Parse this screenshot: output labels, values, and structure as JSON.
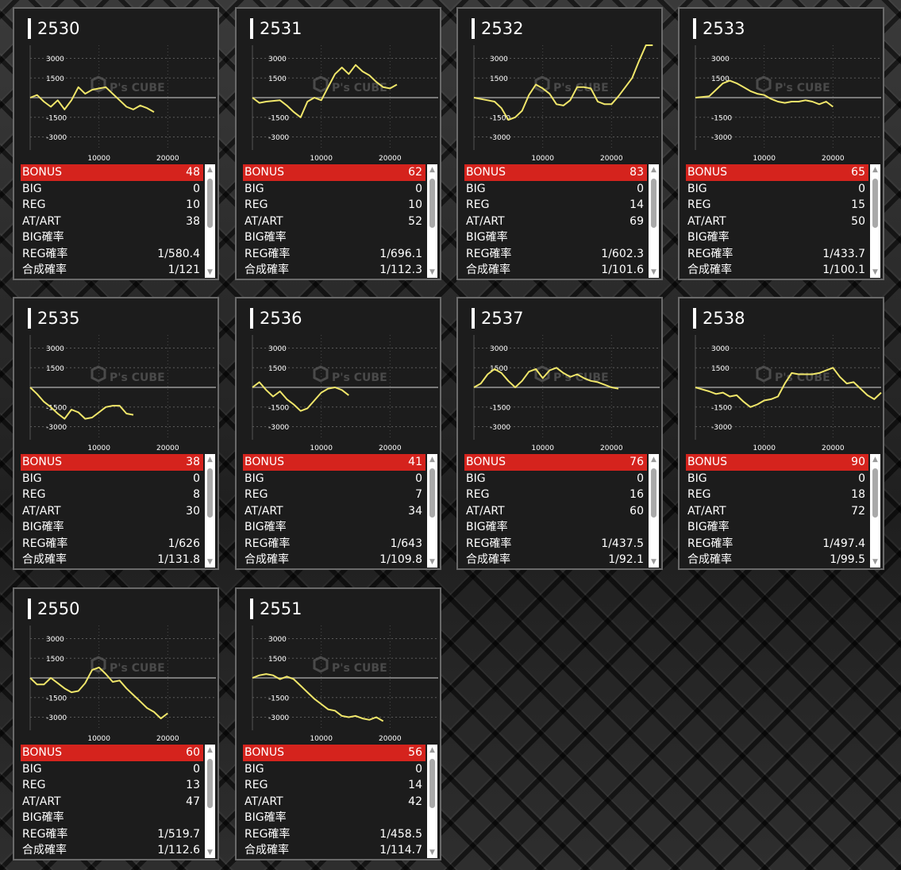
{
  "colors": {
    "line": "#f0e66a",
    "bonus_bg": "#d5231d",
    "card_bg": "#1c1c1c"
  },
  "chart_watermark": {
    "brand": "P's CUBE"
  },
  "machines": [
    {
      "id": "2530",
      "stats": {
        "bonus": "48",
        "big": "0",
        "reg": "10",
        "at_art": "38",
        "big_rate": "",
        "reg_rate": "1/580.4",
        "combined_rate": "1/121"
      },
      "chart_data": {
        "type": "line",
        "x_ticks": [
          "10000",
          "20000"
        ],
        "y_ticks": [
          "3000",
          "1500",
          "-1500",
          "-3000"
        ],
        "xlim": [
          0,
          27000
        ],
        "ylim": [
          -4000,
          4000
        ],
        "x": [
          0,
          1000,
          2000,
          3000,
          4000,
          5000,
          6000,
          7000,
          8000,
          9000,
          10000,
          11000,
          12000,
          13000,
          14000,
          15000,
          16000,
          17000,
          18000
        ],
        "y": [
          0,
          200,
          -300,
          -700,
          -200,
          -900,
          -200,
          800,
          300,
          600,
          700,
          800,
          300,
          -200,
          -700,
          -900,
          -600,
          -800,
          -1100
        ]
      }
    },
    {
      "id": "2531",
      "stats": {
        "bonus": "62",
        "big": "0",
        "reg": "10",
        "at_art": "52",
        "big_rate": "",
        "reg_rate": "1/696.1",
        "combined_rate": "1/112.3"
      },
      "chart_data": {
        "type": "line",
        "x_ticks": [
          "10000",
          "20000"
        ],
        "y_ticks": [
          "3000",
          "1500",
          "-1500",
          "-3000"
        ],
        "xlim": [
          0,
          27000
        ],
        "ylim": [
          -4000,
          4000
        ],
        "x": [
          0,
          1000,
          2000,
          3000,
          4000,
          5000,
          6000,
          7000,
          8000,
          9000,
          10000,
          11000,
          12000,
          13000,
          14000,
          15000,
          16000,
          17000,
          18000,
          19000,
          20000,
          21000
        ],
        "y": [
          0,
          -400,
          -300,
          -250,
          -200,
          -600,
          -1100,
          -1500,
          -300,
          0,
          -200,
          800,
          1800,
          2300,
          1800,
          2500,
          2000,
          1700,
          1200,
          800,
          700,
          1000
        ]
      }
    },
    {
      "id": "2532",
      "stats": {
        "bonus": "83",
        "big": "0",
        "reg": "14",
        "at_art": "69",
        "big_rate": "",
        "reg_rate": "1/602.3",
        "combined_rate": "1/101.6"
      },
      "chart_data": {
        "type": "line",
        "x_ticks": [
          "10000",
          "20000"
        ],
        "y_ticks": [
          "3000",
          "1500",
          "-1500",
          "-3000"
        ],
        "xlim": [
          0,
          27000
        ],
        "ylim": [
          -4000,
          4000
        ],
        "x": [
          0,
          2000,
          3000,
          4000,
          5000,
          6000,
          7000,
          8000,
          9000,
          10000,
          11000,
          12000,
          13000,
          14000,
          15000,
          16000,
          17000,
          18000,
          19000,
          20000,
          21000,
          22000,
          23000,
          24000,
          25000,
          26000
        ],
        "y": [
          0,
          -200,
          -300,
          -800,
          -1700,
          -1500,
          -1000,
          200,
          1000,
          700,
          300,
          -500,
          -600,
          -200,
          800,
          800,
          700,
          -300,
          -500,
          -500,
          100,
          800,
          1500,
          2800,
          4000,
          4000
        ]
      }
    },
    {
      "id": "2533",
      "stats": {
        "bonus": "65",
        "big": "0",
        "reg": "15",
        "at_art": "50",
        "big_rate": "",
        "reg_rate": "1/433.7",
        "combined_rate": "1/100.1"
      },
      "chart_data": {
        "type": "line",
        "x_ticks": [
          "10000",
          "20000"
        ],
        "y_ticks": [
          "3000",
          "1500",
          "-1500",
          "-3000"
        ],
        "xlim": [
          0,
          27000
        ],
        "ylim": [
          -4000,
          4000
        ],
        "x": [
          0,
          2000,
          3000,
          4000,
          5000,
          6000,
          7000,
          8000,
          9000,
          10000,
          11000,
          12000,
          13000,
          14000,
          15000,
          16000,
          17000,
          18000,
          19000,
          20000
        ],
        "y": [
          0,
          100,
          600,
          1100,
          1300,
          1100,
          800,
          500,
          300,
          200,
          -100,
          -300,
          -400,
          -300,
          -300,
          -200,
          -300,
          -500,
          -300,
          -700
        ]
      }
    },
    {
      "id": "2535",
      "stats": {
        "bonus": "38",
        "big": "0",
        "reg": "8",
        "at_art": "30",
        "big_rate": "",
        "reg_rate": "1/626",
        "combined_rate": "1/131.8"
      },
      "chart_data": {
        "type": "line",
        "x_ticks": [
          "10000",
          "20000"
        ],
        "y_ticks": [
          "3000",
          "1500",
          "-1500",
          "-3000"
        ],
        "xlim": [
          0,
          27000
        ],
        "ylim": [
          -4000,
          4000
        ],
        "x": [
          0,
          1000,
          2000,
          3000,
          4000,
          5000,
          6000,
          7000,
          8000,
          9000,
          10000,
          11000,
          12000,
          13000,
          14000,
          15000
        ],
        "y": [
          0,
          -500,
          -1100,
          -1500,
          -2000,
          -2400,
          -1700,
          -1900,
          -2400,
          -2300,
          -1900,
          -1500,
          -1400,
          -1400,
          -2000,
          -2100
        ]
      }
    },
    {
      "id": "2536",
      "stats": {
        "bonus": "41",
        "big": "0",
        "reg": "7",
        "at_art": "34",
        "big_rate": "",
        "reg_rate": "1/643",
        "combined_rate": "1/109.8"
      },
      "chart_data": {
        "type": "line",
        "x_ticks": [
          "10000",
          "20000"
        ],
        "y_ticks": [
          "3000",
          "1500",
          "-1500",
          "-3000"
        ],
        "xlim": [
          0,
          27000
        ],
        "ylim": [
          -4000,
          4000
        ],
        "x": [
          0,
          1000,
          2000,
          3000,
          4000,
          5000,
          6000,
          7000,
          8000,
          9000,
          10000,
          11000,
          12000,
          13000,
          14000
        ],
        "y": [
          0,
          400,
          -200,
          -700,
          -300,
          -900,
          -1300,
          -1800,
          -1600,
          -1000,
          -400,
          -100,
          0,
          -200,
          -600
        ]
      }
    },
    {
      "id": "2537",
      "stats": {
        "bonus": "76",
        "big": "0",
        "reg": "16",
        "at_art": "60",
        "big_rate": "",
        "reg_rate": "1/437.5",
        "combined_rate": "1/92.1"
      },
      "chart_data": {
        "type": "line",
        "x_ticks": [
          "10000",
          "20000"
        ],
        "y_ticks": [
          "3000",
          "1500",
          "-1500",
          "-3000"
        ],
        "xlim": [
          0,
          27000
        ],
        "ylim": [
          -4000,
          4000
        ],
        "x": [
          0,
          1000,
          2000,
          3000,
          4000,
          5000,
          6000,
          7000,
          8000,
          9000,
          10000,
          11000,
          12000,
          13000,
          14000,
          15000,
          16000,
          17000,
          18000,
          19000,
          20000,
          21000
        ],
        "y": [
          0,
          300,
          1000,
          1400,
          1100,
          500,
          0,
          500,
          1200,
          1400,
          700,
          1300,
          1500,
          1100,
          800,
          1000,
          700,
          500,
          400,
          200,
          0,
          -100
        ]
      }
    },
    {
      "id": "2538",
      "stats": {
        "bonus": "90",
        "big": "0",
        "reg": "18",
        "at_art": "72",
        "big_rate": "",
        "reg_rate": "1/497.4",
        "combined_rate": "1/99.5"
      },
      "chart_data": {
        "type": "line",
        "x_ticks": [
          "10000",
          "20000"
        ],
        "y_ticks": [
          "3000",
          "1500",
          "-1500",
          "-3000"
        ],
        "xlim": [
          0,
          27000
        ],
        "ylim": [
          -4000,
          4000
        ],
        "x": [
          0,
          2000,
          3000,
          4000,
          5000,
          6000,
          7000,
          8000,
          9000,
          10000,
          11000,
          12000,
          13000,
          14000,
          15000,
          16000,
          17000,
          18000,
          19000,
          20000,
          21000,
          22000,
          23000,
          24000,
          25000,
          26000,
          27000
        ],
        "y": [
          0,
          -300,
          -500,
          -400,
          -700,
          -600,
          -1100,
          -1500,
          -1300,
          -1000,
          -900,
          -700,
          300,
          1100,
          1000,
          1000,
          1000,
          1100,
          1300,
          1500,
          800,
          300,
          400,
          -100,
          -600,
          -900,
          -400
        ]
      }
    },
    {
      "id": "2550",
      "stats": {
        "bonus": "60",
        "big": "0",
        "reg": "13",
        "at_art": "47",
        "big_rate": "",
        "reg_rate": "1/519.7",
        "combined_rate": "1/112.6"
      },
      "chart_data": {
        "type": "line",
        "x_ticks": [
          "10000",
          "20000"
        ],
        "y_ticks": [
          "3000",
          "1500",
          "-1500",
          "-3000"
        ],
        "xlim": [
          0,
          27000
        ],
        "ylim": [
          -4000,
          4000
        ],
        "x": [
          0,
          1000,
          2000,
          3000,
          4000,
          5000,
          6000,
          7000,
          8000,
          9000,
          10000,
          11000,
          12000,
          13000,
          14000,
          15000,
          16000,
          17000,
          18000,
          19000,
          20000
        ],
        "y": [
          0,
          -500,
          -500,
          0,
          -400,
          -800,
          -1100,
          -1000,
          -400,
          600,
          800,
          300,
          -300,
          -200,
          -800,
          -1300,
          -1800,
          -2300,
          -2600,
          -3100,
          -2700
        ]
      }
    },
    {
      "id": "2551",
      "stats": {
        "bonus": "56",
        "big": "0",
        "reg": "14",
        "at_art": "42",
        "big_rate": "",
        "reg_rate": "1/458.5",
        "combined_rate": "1/114.7"
      },
      "chart_data": {
        "type": "line",
        "x_ticks": [
          "10000",
          "20000"
        ],
        "y_ticks": [
          "3000",
          "1500",
          "-1500",
          "-3000"
        ],
        "xlim": [
          0,
          27000
        ],
        "ylim": [
          -4000,
          4000
        ],
        "x": [
          0,
          1000,
          2000,
          3000,
          4000,
          5000,
          6000,
          7000,
          8000,
          9000,
          10000,
          11000,
          12000,
          13000,
          14000,
          15000,
          16000,
          17000,
          18000,
          19000
        ],
        "y": [
          0,
          200,
          300,
          200,
          -100,
          100,
          -100,
          -600,
          -1100,
          -1600,
          -2000,
          -2400,
          -2500,
          -2900,
          -3000,
          -2900,
          -3100,
          -3200,
          -3000,
          -3300
        ]
      }
    }
  ],
  "labels": {
    "bonus": "BONUS",
    "big": "BIG",
    "reg": "REG",
    "at_art": "AT/ART",
    "big_rate": "BIG確率",
    "reg_rate": "REG確率",
    "combined_rate": "合成確率"
  }
}
